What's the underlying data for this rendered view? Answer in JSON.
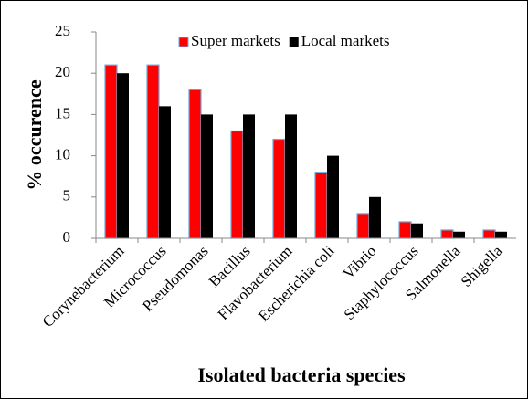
{
  "chart_data": {
    "type": "bar",
    "xlabel": "Isolated bacteria species",
    "ylabel": "% occurence",
    "categories": [
      "Corynebacterium",
      "Micrococcus",
      "Pseudomonas",
      "Bacillus",
      "Flavobacterium",
      "Escherichia coli",
      "Vibrio",
      "Staphylococcus",
      "Salmonella",
      "Shigella"
    ],
    "series": [
      {
        "name": "Super markets",
        "color": "#ff0000",
        "edgecolor": "#6fa8dc",
        "values": [
          21,
          21,
          18,
          13,
          12,
          8,
          3,
          2,
          1,
          1
        ]
      },
      {
        "name": "Local markets",
        "color": "#000000",
        "values": [
          20,
          16,
          15,
          15,
          15,
          10,
          5,
          1.8,
          0.8,
          0.8
        ]
      }
    ],
    "ylim": [
      0,
      25
    ],
    "yticks": [
      0,
      5,
      10,
      15,
      20,
      25
    ],
    "grid": false,
    "legend": "top"
  }
}
